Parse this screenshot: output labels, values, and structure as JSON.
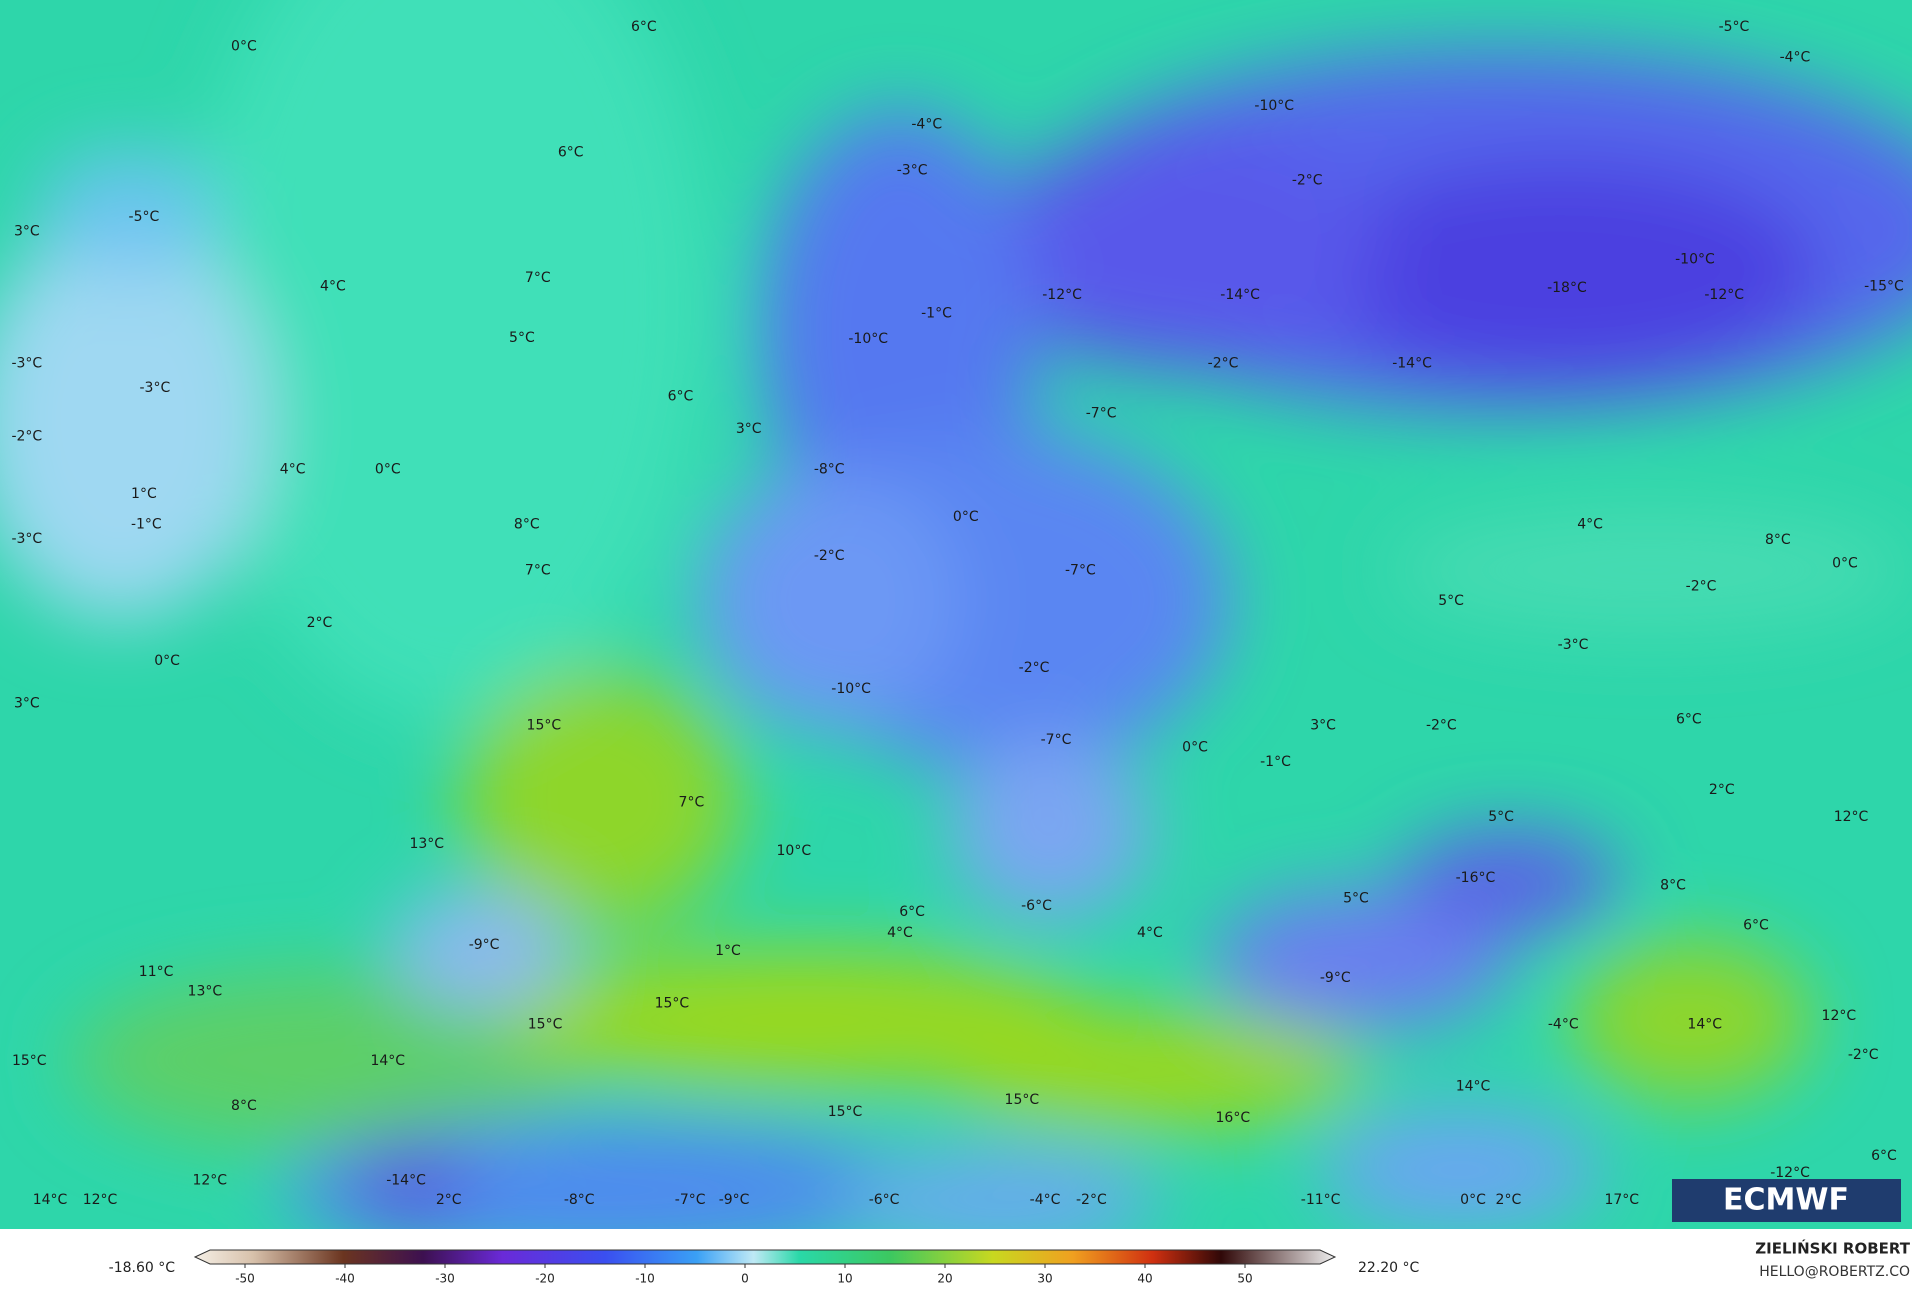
{
  "map": {
    "labels": [
      "6°C",
      "0°C",
      "-5°C",
      "-4°C",
      "-10°C",
      "-4°C",
      "6°C",
      "-3°C",
      "-2°C",
      "-5°C",
      "3°C",
      "-10°C",
      "7°C",
      "4°C",
      "-18°C",
      "-12°C",
      "-14°C",
      "-12°C",
      "-15°C",
      "-1°C",
      "-10°C",
      "5°C",
      "-3°C",
      "-2°C",
      "-14°C",
      "-3°C",
      "6°C",
      "3°C",
      "-7°C",
      "-2°C",
      "4°C",
      "0°C",
      "-8°C",
      "1°C",
      "0°C",
      "-1°C",
      "8°C",
      "4°C",
      "8°C",
      "-3°C",
      "-2°C",
      "0°C",
      "7°C",
      "-7°C",
      "-2°C",
      "5°C",
      "2°C",
      "-3°C",
      "0°C",
      "-2°C",
      "-10°C",
      "3°C",
      "15°C",
      "3°C",
      "-2°C",
      "6°C",
      "-7°C",
      "0°C",
      "-1°C",
      "2°C",
      "7°C",
      "12°C",
      "5°C",
      "13°C",
      "10°C",
      "8°C",
      "-16°C",
      "5°C",
      "6°C",
      "-6°C",
      "6°C",
      "4°C",
      "4°C",
      "-9°C",
      "1°C",
      "11°C",
      "-9°C",
      "13°C",
      "15°C",
      "12°C",
      "15°C",
      "-4°C",
      "14°C",
      "15°C",
      "14°C",
      "-2°C",
      "14°C",
      "15°C",
      "8°C",
      "15°C",
      "16°C",
      "-14°C",
      "12°C",
      "6°C",
      "-12°C",
      "14°C",
      "12°C",
      "2°C",
      "-8°C",
      "-7°C",
      "-9°C",
      "-6°C",
      "-4°C",
      "-2°C",
      "-11°C",
      "0°C",
      "2°C",
      "17°C"
    ],
    "logo": "ECMWF"
  },
  "colorbar": {
    "min_label": "-18.60 °C",
    "max_label": "22.20 °C",
    "lim": [
      -55,
      59
    ],
    "ticks": [
      -50,
      -40,
      -30,
      -20,
      -10,
      0,
      10,
      20,
      30,
      40,
      50
    ]
  },
  "credits": {
    "author": "ZIELIŃSKI ROBERT",
    "contact": "HELLO@ROBERTZ.CO"
  }
}
